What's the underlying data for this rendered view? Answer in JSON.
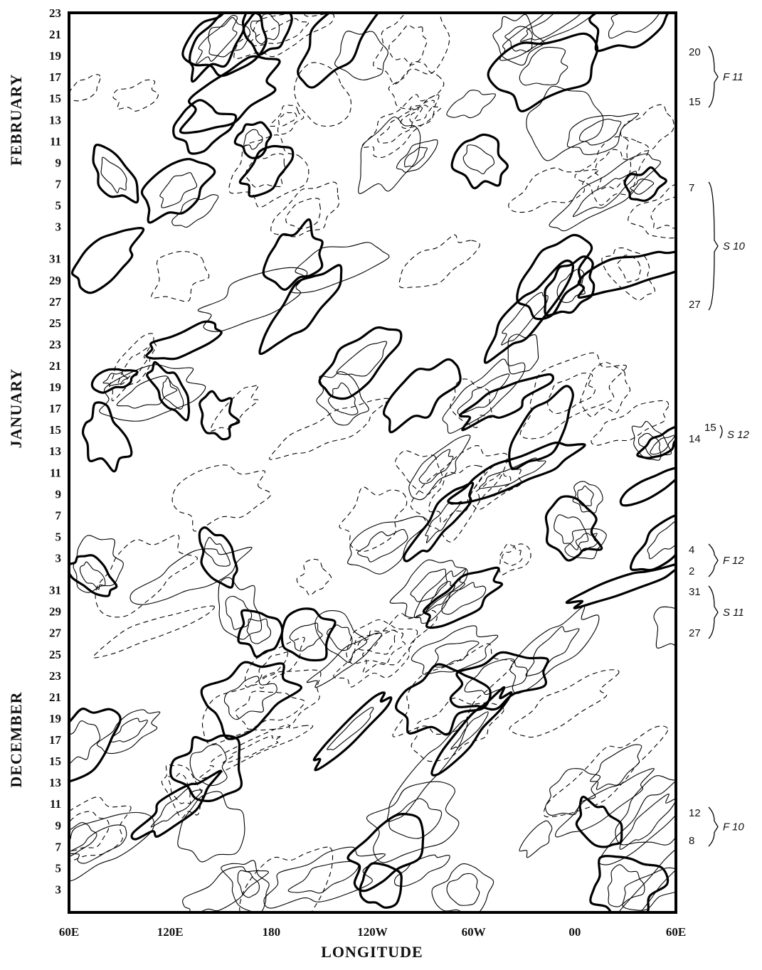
{
  "figure": {
    "x_axis": {
      "label": "LONGITUDE",
      "ticks": [
        "60E",
        "120E",
        "180",
        "120W",
        "60W",
        "00",
        "60E"
      ]
    },
    "y_axis": {
      "groups": [
        {
          "month": "FEBRUARY",
          "days": [
            23,
            21,
            19,
            17,
            15,
            13,
            11,
            9,
            7,
            5,
            3
          ]
        },
        {
          "month": "JANUARY",
          "days": [
            31,
            29,
            27,
            25,
            23,
            21,
            19,
            17,
            15,
            13,
            11,
            9,
            7,
            5,
            3
          ]
        },
        {
          "month": "DECEMBER",
          "days": [
            31,
            29,
            27,
            25,
            23,
            21,
            19,
            17,
            15,
            13,
            11,
            9,
            7,
            5,
            3
          ]
        }
      ]
    },
    "annotations": [
      {
        "top": "20",
        "bottom": "15",
        "name": "F 11"
      },
      {
        "top": "7",
        "bottom": "27",
        "name": "S 10"
      },
      {
        "top": "15",
        "bottom": "14",
        "name": "S 12"
      },
      {
        "top": "4",
        "bottom": "2",
        "name": "F 12"
      },
      {
        "top": "31",
        "bottom": "27",
        "name": "S 11"
      },
      {
        "top": "12",
        "bottom": "8",
        "name": "F 10"
      }
    ]
  }
}
